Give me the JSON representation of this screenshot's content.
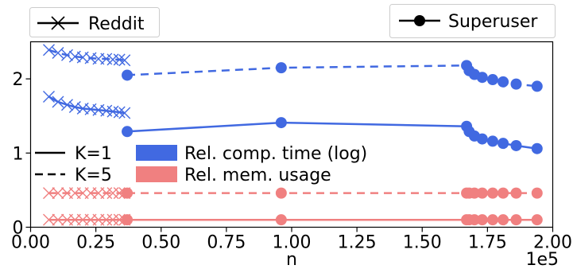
{
  "chart_data": {
    "type": "line",
    "xlabel": "n",
    "ylabel": "",
    "x_offset_label": "1e5",
    "xlim": [
      0,
      2.0
    ],
    "ylim": [
      0,
      2.5
    ],
    "x_ticks": [
      {
        "value": 0.0,
        "label": "0.00"
      },
      {
        "value": 0.25,
        "label": "0.25"
      },
      {
        "value": 0.5,
        "label": "0.50"
      },
      {
        "value": 0.75,
        "label": "0.75"
      },
      {
        "value": 1.0,
        "label": "1.00"
      },
      {
        "value": 1.25,
        "label": "1.25"
      },
      {
        "value": 1.5,
        "label": "1.50"
      },
      {
        "value": 1.75,
        "label": "1.75"
      },
      {
        "value": 2.0,
        "label": "2.00"
      }
    ],
    "y_ticks": [
      {
        "value": 0,
        "label": "0"
      },
      {
        "value": 1,
        "label": "1"
      },
      {
        "value": 2,
        "label": "2"
      }
    ],
    "grid": false,
    "colors": {
      "time": "#4169e1",
      "memory": "#f08080"
    },
    "datasets": [
      {
        "name": "Reddit",
        "marker": "x"
      },
      {
        "name": "Superuser",
        "marker": "circle"
      }
    ],
    "line_styles": [
      {
        "name": "K=1",
        "dash": "solid"
      },
      {
        "name": "K=5",
        "dash": "dashed"
      }
    ],
    "metrics": [
      {
        "name": "Rel. comp. time (log)",
        "color": "#4169e1"
      },
      {
        "name": "Rel. mem. usage",
        "color": "#f08080"
      }
    ],
    "series": [
      {
        "dataset": "Reddit",
        "metric": "time",
        "k": 1,
        "x": [
          0.07,
          0.105,
          0.14,
          0.17,
          0.2,
          0.23,
          0.26,
          0.29,
          0.315,
          0.34,
          0.36
        ],
        "y": [
          1.76,
          1.69,
          1.65,
          1.62,
          1.6,
          1.59,
          1.58,
          1.57,
          1.56,
          1.55,
          1.54
        ]
      },
      {
        "dataset": "Reddit",
        "metric": "time",
        "k": 5,
        "x": [
          0.07,
          0.105,
          0.14,
          0.17,
          0.2,
          0.23,
          0.26,
          0.29,
          0.315,
          0.34,
          0.36
        ],
        "y": [
          2.39,
          2.35,
          2.32,
          2.3,
          2.29,
          2.28,
          2.27,
          2.27,
          2.26,
          2.26,
          2.25
        ]
      },
      {
        "dataset": "Reddit",
        "metric": "memory",
        "k": 1,
        "x": [
          0.07,
          0.105,
          0.14,
          0.17,
          0.2,
          0.23,
          0.26,
          0.29,
          0.315,
          0.34,
          0.36
        ],
        "y": [
          0.1,
          0.1,
          0.1,
          0.1,
          0.1,
          0.1,
          0.1,
          0.1,
          0.1,
          0.1,
          0.1
        ]
      },
      {
        "dataset": "Reddit",
        "metric": "memory",
        "k": 5,
        "x": [
          0.07,
          0.105,
          0.14,
          0.17,
          0.2,
          0.23,
          0.26,
          0.29,
          0.315,
          0.34,
          0.36
        ],
        "y": [
          0.46,
          0.46,
          0.46,
          0.46,
          0.46,
          0.46,
          0.46,
          0.46,
          0.46,
          0.46,
          0.46
        ]
      },
      {
        "dataset": "Superuser",
        "metric": "time",
        "k": 1,
        "x": [
          0.37,
          0.96,
          1.67,
          1.68,
          1.7,
          1.73,
          1.77,
          1.81,
          1.86,
          1.94
        ],
        "y": [
          1.29,
          1.41,
          1.36,
          1.29,
          1.23,
          1.19,
          1.16,
          1.13,
          1.1,
          1.06
        ]
      },
      {
        "dataset": "Superuser",
        "metric": "time",
        "k": 5,
        "x": [
          0.37,
          0.96,
          1.67,
          1.68,
          1.7,
          1.73,
          1.77,
          1.81,
          1.86,
          1.94
        ],
        "y": [
          2.05,
          2.15,
          2.18,
          2.11,
          2.06,
          2.02,
          1.99,
          1.96,
          1.93,
          1.9
        ]
      },
      {
        "dataset": "Superuser",
        "metric": "memory",
        "k": 1,
        "x": [
          0.37,
          0.96,
          1.67,
          1.68,
          1.7,
          1.73,
          1.77,
          1.81,
          1.86,
          1.94
        ],
        "y": [
          0.1,
          0.1,
          0.1,
          0.1,
          0.1,
          0.1,
          0.1,
          0.1,
          0.1,
          0.1
        ]
      },
      {
        "dataset": "Superuser",
        "metric": "memory",
        "k": 5,
        "x": [
          0.37,
          0.96,
          1.67,
          1.68,
          1.7,
          1.73,
          1.77,
          1.81,
          1.86,
          1.94
        ],
        "y": [
          0.46,
          0.46,
          0.46,
          0.46,
          0.46,
          0.46,
          0.46,
          0.46,
          0.46,
          0.46
        ]
      }
    ]
  }
}
